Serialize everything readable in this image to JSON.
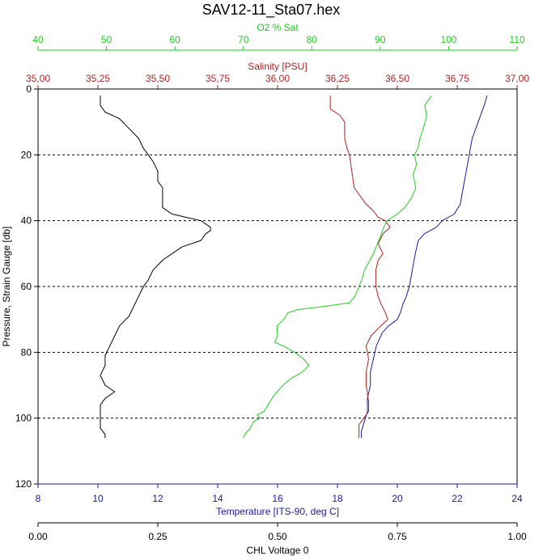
{
  "chart_data": {
    "type": "line",
    "title": "SAV12-11_Sta07.hex",
    "y_axis": {
      "label": "Pressure, Strain Gauge [db]",
      "range": [
        0,
        120
      ],
      "inverted": true,
      "ticks": [
        "0",
        "20",
        "40",
        "60",
        "80",
        "100",
        "120"
      ]
    },
    "axes": {
      "o2": {
        "label": "O2 % Sat",
        "color": "#22cc22",
        "range": [
          40,
          110
        ],
        "ticks": [
          "40",
          "50",
          "60",
          "70",
          "80",
          "90",
          "100",
          "110"
        ]
      },
      "salinity": {
        "label": "Salinity [PSU]",
        "color": "#b22222",
        "range": [
          35.0,
          37.0
        ],
        "ticks": [
          "35,00",
          "35,25",
          "35,50",
          "35,75",
          "36,00",
          "36,25",
          "36,50",
          "36,75",
          "37,00"
        ]
      },
      "temperature": {
        "label": "Temperature [ITS-90, deg C]",
        "color": "#1a1aa0",
        "range": [
          8,
          24
        ],
        "ticks": [
          "8",
          "10",
          "12",
          "14",
          "16",
          "18",
          "20",
          "22",
          "24"
        ]
      },
      "chl": {
        "label": "CHL Voltage 0",
        "color": "#000000",
        "range": [
          0.0,
          1.0
        ],
        "ticks": [
          "0.00",
          "0.25",
          "0.50",
          "0.75",
          "1.00"
        ]
      }
    },
    "grid": {
      "horizontal_dashed_at": [
        20,
        40,
        60,
        80,
        100
      ]
    },
    "series": [
      {
        "name": "Temperature [ITS-90, deg C]",
        "axis": "temperature",
        "color": "#1a1aa0",
        "points": [
          [
            23.0,
            2
          ],
          [
            22.9,
            5
          ],
          [
            22.7,
            10
          ],
          [
            22.5,
            15
          ],
          [
            22.4,
            20
          ],
          [
            22.3,
            25
          ],
          [
            22.2,
            30
          ],
          [
            22.1,
            35
          ],
          [
            21.9,
            38
          ],
          [
            21.5,
            40
          ],
          [
            21.3,
            42
          ],
          [
            20.9,
            44
          ],
          [
            20.7,
            46
          ],
          [
            20.6,
            50
          ],
          [
            20.5,
            55
          ],
          [
            20.4,
            60
          ],
          [
            20.3,
            63
          ],
          [
            20.2,
            65
          ],
          [
            20.1,
            68
          ],
          [
            20.0,
            70
          ],
          [
            19.7,
            72
          ],
          [
            19.5,
            74
          ],
          [
            19.3,
            78
          ],
          [
            19.2,
            82
          ],
          [
            19.1,
            86
          ],
          [
            19.1,
            90
          ],
          [
            19.0,
            94
          ],
          [
            19.0,
            98
          ],
          [
            18.9,
            101
          ],
          [
            18.8,
            104
          ],
          [
            18.8,
            106
          ]
        ]
      },
      {
        "name": "Salinity [PSU]",
        "axis": "salinity",
        "color": "#b22222",
        "points": [
          [
            36.22,
            2
          ],
          [
            36.22,
            6
          ],
          [
            36.26,
            8
          ],
          [
            36.28,
            10
          ],
          [
            36.28,
            15
          ],
          [
            36.29,
            18
          ],
          [
            36.3,
            20
          ],
          [
            36.31,
            25
          ],
          [
            36.32,
            30
          ],
          [
            36.35,
            33
          ],
          [
            36.37,
            35
          ],
          [
            36.4,
            37
          ],
          [
            36.42,
            39
          ],
          [
            36.45,
            40
          ],
          [
            36.47,
            42
          ],
          [
            36.44,
            44
          ],
          [
            36.42,
            47
          ],
          [
            36.44,
            50
          ],
          [
            36.42,
            52
          ],
          [
            36.41,
            55
          ],
          [
            36.41,
            60
          ],
          [
            36.42,
            63
          ],
          [
            36.43,
            65
          ],
          [
            36.45,
            68
          ],
          [
            36.46,
            70
          ],
          [
            36.43,
            72
          ],
          [
            36.39,
            75
          ],
          [
            36.37,
            78
          ],
          [
            36.38,
            82
          ],
          [
            36.37,
            86
          ],
          [
            36.37,
            90
          ],
          [
            36.38,
            95
          ],
          [
            36.38,
            98
          ],
          [
            36.36,
            100
          ],
          [
            36.34,
            102
          ],
          [
            36.34,
            104
          ],
          [
            36.34,
            106
          ]
        ]
      },
      {
        "name": "O2 % Sat",
        "axis": "o2",
        "color": "#22cc22",
        "points": [
          [
            97.5,
            2
          ],
          [
            96.5,
            5
          ],
          [
            96.8,
            8
          ],
          [
            96.3,
            12
          ],
          [
            95.8,
            15
          ],
          [
            95.5,
            18
          ],
          [
            95.0,
            20
          ],
          [
            95.3,
            23
          ],
          [
            94.8,
            26
          ],
          [
            95.2,
            30
          ],
          [
            94.6,
            33
          ],
          [
            93.6,
            36
          ],
          [
            92.5,
            38
          ],
          [
            91.0,
            40
          ],
          [
            90.5,
            42
          ],
          [
            90.0,
            45
          ],
          [
            89.4,
            48
          ],
          [
            89.0,
            50
          ],
          [
            88.5,
            52
          ],
          [
            87.7,
            55
          ],
          [
            87.3,
            58
          ],
          [
            86.9,
            60
          ],
          [
            86.3,
            63
          ],
          [
            85.5,
            65
          ],
          [
            82.0,
            66
          ],
          [
            78.0,
            67
          ],
          [
            76.5,
            68
          ],
          [
            75.9,
            70
          ],
          [
            74.9,
            72
          ],
          [
            75.0,
            75
          ],
          [
            74.6,
            77
          ],
          [
            75.8,
            78
          ],
          [
            77.5,
            80
          ],
          [
            78.8,
            82
          ],
          [
            79.6,
            84
          ],
          [
            78.6,
            86
          ],
          [
            76.9,
            88
          ],
          [
            75.8,
            90
          ],
          [
            74.5,
            93
          ],
          [
            73.9,
            95
          ],
          [
            73.0,
            98
          ],
          [
            72.0,
            99
          ],
          [
            72.5,
            100
          ],
          [
            71.5,
            101
          ],
          [
            71.0,
            103
          ],
          [
            70.2,
            105
          ],
          [
            70.0,
            106
          ]
        ]
      },
      {
        "name": "CHL Voltage 0",
        "axis": "chl",
        "color": "#000000",
        "points": [
          [
            0.13,
            2
          ],
          [
            0.13,
            5
          ],
          [
            0.14,
            7
          ],
          [
            0.17,
            9
          ],
          [
            0.19,
            12
          ],
          [
            0.21,
            15
          ],
          [
            0.22,
            18
          ],
          [
            0.23,
            20
          ],
          [
            0.24,
            22
          ],
          [
            0.25,
            25
          ],
          [
            0.25,
            28
          ],
          [
            0.26,
            30
          ],
          [
            0.26,
            33
          ],
          [
            0.26,
            36
          ],
          [
            0.28,
            38
          ],
          [
            0.31,
            39
          ],
          [
            0.34,
            40
          ],
          [
            0.36,
            42
          ],
          [
            0.36,
            43
          ],
          [
            0.35,
            44
          ],
          [
            0.34,
            46
          ],
          [
            0.3,
            48
          ],
          [
            0.28,
            50
          ],
          [
            0.26,
            52
          ],
          [
            0.24,
            55
          ],
          [
            0.23,
            58
          ],
          [
            0.22,
            60
          ],
          [
            0.21,
            63
          ],
          [
            0.2,
            66
          ],
          [
            0.19,
            69
          ],
          [
            0.17,
            72
          ],
          [
            0.16,
            75
          ],
          [
            0.15,
            78
          ],
          [
            0.14,
            81
          ],
          [
            0.14,
            84
          ],
          [
            0.13,
            87
          ],
          [
            0.14,
            90
          ],
          [
            0.16,
            92
          ],
          [
            0.14,
            94
          ],
          [
            0.13,
            96
          ],
          [
            0.13,
            98
          ],
          [
            0.13,
            100
          ],
          [
            0.13,
            103
          ],
          [
            0.14,
            105
          ],
          [
            0.14,
            106
          ]
        ]
      }
    ]
  }
}
